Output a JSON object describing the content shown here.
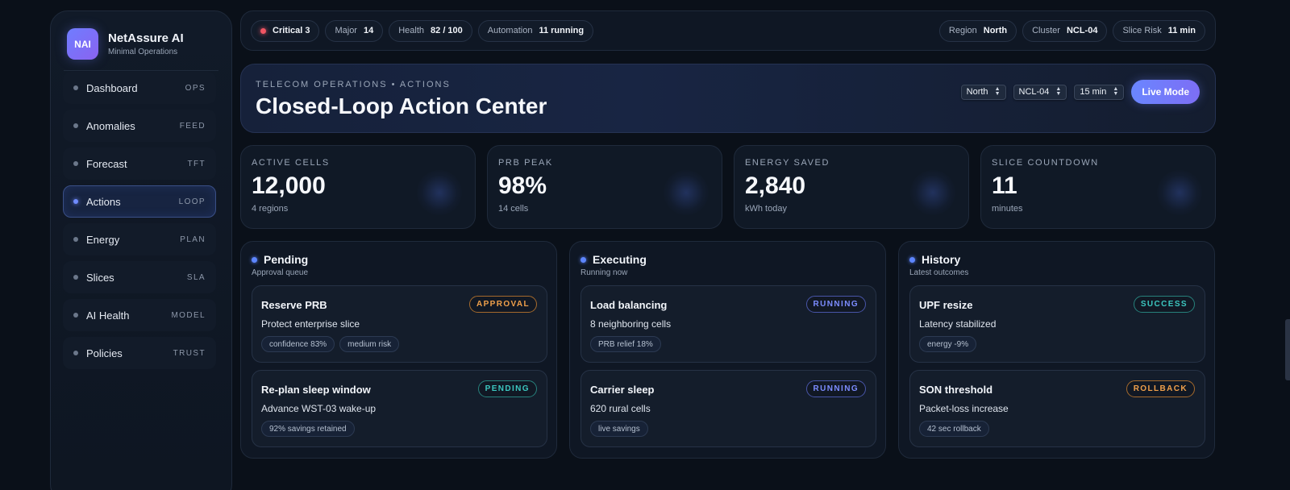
{
  "brand": {
    "logo": "NAI",
    "name": "NetAssure AI",
    "subtitle": "Minimal Operations"
  },
  "nav": [
    {
      "label": "Dashboard",
      "tag": "OPS"
    },
    {
      "label": "Anomalies",
      "tag": "FEED"
    },
    {
      "label": "Forecast",
      "tag": "TFT"
    },
    {
      "label": "Actions",
      "tag": "LOOP",
      "active": true
    },
    {
      "label": "Energy",
      "tag": "PLAN"
    },
    {
      "label": "Slices",
      "tag": "SLA"
    },
    {
      "label": "AI Health",
      "tag": "MODEL"
    },
    {
      "label": "Policies",
      "tag": "TRUST"
    }
  ],
  "topbar": {
    "critical": {
      "label": "Critical 3"
    },
    "major": {
      "label": "Major",
      "value": "14"
    },
    "health": {
      "label": "Health",
      "value": "82 / 100"
    },
    "automation": {
      "label": "Automation",
      "value": "11 running"
    },
    "region": {
      "label": "Region",
      "value": "North"
    },
    "cluster": {
      "label": "Cluster",
      "value": "NCL-04"
    },
    "slice_risk": {
      "label": "Slice Risk",
      "value": "11 min"
    }
  },
  "hero": {
    "kicker": "TELECOM OPERATIONS • ACTIONS",
    "title": "Closed-Loop Action Center",
    "region_select": "North",
    "cluster_select": "NCL-04",
    "interval_select": "15 min",
    "live_button": "Live Mode"
  },
  "stats": [
    {
      "label": "ACTIVE CELLS",
      "value": "12,000",
      "sub": "4 regions"
    },
    {
      "label": "PRB PEAK",
      "value": "98%",
      "sub": "14 cells"
    },
    {
      "label": "ENERGY SAVED",
      "value": "2,840",
      "sub": "kWh today"
    },
    {
      "label": "SLICE COUNTDOWN",
      "value": "11",
      "sub": "minutes"
    }
  ],
  "columns": [
    {
      "title": "Pending",
      "subtitle": "Approval queue",
      "cards": [
        {
          "title": "Reserve PRB",
          "desc": "Protect enterprise slice",
          "badge": "APPROVAL",
          "tags": [
            "confidence 83%",
            "medium risk"
          ]
        },
        {
          "title": "Re-plan sleep window",
          "desc": "Advance WST-03 wake-up",
          "badge": "PENDING",
          "tags": [
            "92% savings retained"
          ]
        }
      ]
    },
    {
      "title": "Executing",
      "subtitle": "Running now",
      "cards": [
        {
          "title": "Load balancing",
          "desc": "8 neighboring cells",
          "badge": "RUNNING",
          "tags": [
            "PRB relief 18%"
          ]
        },
        {
          "title": "Carrier sleep",
          "desc": "620 rural cells",
          "badge": "RUNNING",
          "tags": [
            "live savings"
          ]
        }
      ]
    },
    {
      "title": "History",
      "subtitle": "Latest outcomes",
      "cards": [
        {
          "title": "UPF resize",
          "desc": "Latency stabilized",
          "badge": "SUCCESS",
          "tags": [
            "energy -9%"
          ]
        },
        {
          "title": "SON threshold",
          "desc": "Packet-loss increase",
          "badge": "ROLLBACK",
          "tags": [
            "42 sec rollback"
          ]
        }
      ]
    }
  ],
  "colors": {
    "accent": "#6a86ff",
    "critical": "#f05563",
    "approval": "#f0a04b",
    "success": "#3cc7c0",
    "running": "#7c8cff"
  }
}
